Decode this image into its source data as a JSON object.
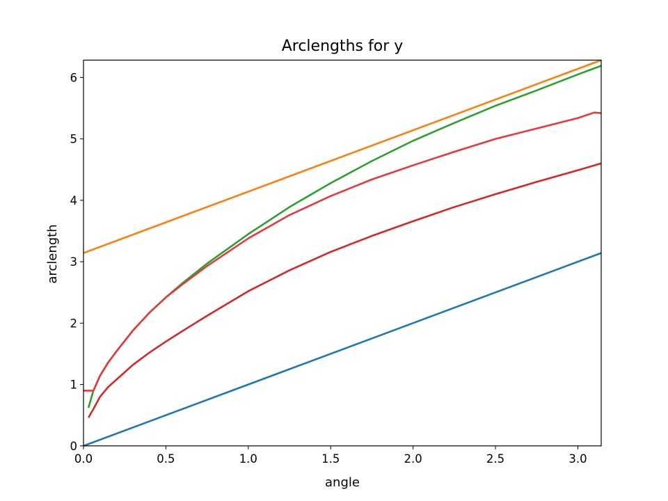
{
  "chart_data": {
    "type": "line",
    "title": "Arclengths for y",
    "xlabel": "angle",
    "ylabel": "arclength",
    "xlim": [
      0,
      3.14159
    ],
    "ylim": [
      0,
      6.28318
    ],
    "xticks": [
      "0.0",
      "0.5",
      "1.0",
      "1.5",
      "2.0",
      "2.5",
      "3.0"
    ],
    "yticks": [
      "0",
      "1",
      "2",
      "3",
      "4",
      "5",
      "6"
    ],
    "grid": false,
    "legend": "none",
    "series": [
      {
        "color": "#1f77b4",
        "x": [
          0,
          3.14159
        ],
        "y": [
          0,
          3.14159
        ]
      },
      {
        "color": "#ff7f0e",
        "x": [
          0,
          3.14159
        ],
        "y": [
          3.14159,
          6.28318
        ]
      },
      {
        "color": "#2ca02c",
        "x": [
          0.03,
          0.06,
          0.1,
          0.15,
          0.2,
          0.3,
          0.4,
          0.5,
          0.6,
          0.75,
          1.0,
          1.25,
          1.5,
          1.75,
          2.0,
          2.25,
          2.5,
          2.75,
          3.0,
          3.14
        ],
        "y": [
          0.62,
          0.9,
          1.14,
          1.36,
          1.54,
          1.88,
          2.17,
          2.42,
          2.65,
          2.97,
          3.45,
          3.89,
          4.28,
          4.64,
          4.97,
          5.26,
          5.54,
          5.79,
          6.05,
          6.19
        ]
      },
      {
        "color": "#e8383d",
        "x": [
          0.0,
          0.06,
          0.1,
          0.15,
          0.2,
          0.3,
          0.4,
          0.5,
          0.6,
          0.75,
          1.0,
          1.25,
          1.5,
          1.75,
          2.0,
          2.25,
          2.5,
          2.75,
          3.0,
          3.1,
          3.14
        ],
        "y": [
          0.9,
          0.9,
          1.14,
          1.36,
          1.54,
          1.88,
          2.17,
          2.42,
          2.63,
          2.93,
          3.38,
          3.76,
          4.07,
          4.34,
          4.57,
          4.79,
          5.0,
          5.17,
          5.34,
          5.43,
          5.42
        ]
      },
      {
        "color": "#d62728",
        "x": [
          0.03,
          0.06,
          0.1,
          0.15,
          0.2,
          0.3,
          0.4,
          0.5,
          0.6,
          0.75,
          1.0,
          1.25,
          1.5,
          1.75,
          2.0,
          2.25,
          2.5,
          2.75,
          3.0,
          3.14
        ],
        "y": [
          0.46,
          0.6,
          0.8,
          0.96,
          1.08,
          1.32,
          1.52,
          1.7,
          1.87,
          2.12,
          2.52,
          2.86,
          3.16,
          3.42,
          3.66,
          3.89,
          4.1,
          4.3,
          4.49,
          4.6
        ]
      }
    ]
  }
}
